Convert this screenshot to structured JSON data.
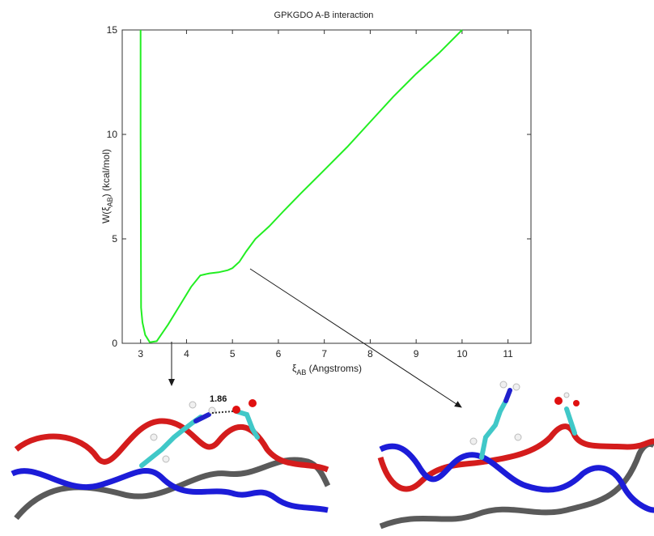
{
  "chart_data": {
    "type": "line",
    "title": "GPKGDO A-B interaction",
    "xlabel_main": "ξ",
    "xlabel_sub": "AB",
    "xlabel_rest": " (Angstroms)",
    "ylabel_main": "W(ξ",
    "ylabel_sub": "AB",
    "ylabel_rest": ") (kcal/mol)",
    "xlim": [
      2.6,
      11.5
    ],
    "ylim": [
      0,
      15
    ],
    "xticks": [
      3,
      4,
      5,
      6,
      7,
      8,
      9,
      10,
      11
    ],
    "yticks": [
      0,
      5,
      10,
      15
    ],
    "grid": false,
    "series": [
      {
        "color": "#22ee22",
        "x": [
          3.0,
          3.0,
          3.01,
          3.04,
          3.1,
          3.2,
          3.35,
          3.6,
          3.85,
          4.1,
          4.3,
          4.5,
          4.7,
          4.9,
          5.0,
          5.15,
          5.3,
          5.5,
          5.8,
          6.1,
          6.5,
          7.0,
          7.5,
          8.0,
          8.5,
          9.0,
          9.5,
          10.0
        ],
        "y": [
          15,
          10,
          1.7,
          1.0,
          0.4,
          0.05,
          0.1,
          0.9,
          1.8,
          2.7,
          3.25,
          3.35,
          3.4,
          3.5,
          3.6,
          3.9,
          4.4,
          5.0,
          5.6,
          6.3,
          7.2,
          8.3,
          9.4,
          10.6,
          11.8,
          12.9,
          13.9,
          15.0
        ]
      }
    ]
  },
  "annotations": {
    "hbond_distance": "1.86",
    "arrow_color": "#1a1a1a",
    "chain_colors": {
      "red": "#d41c1c",
      "blue": "#1c1cd8",
      "gray": "#5a5a5a"
    }
  }
}
